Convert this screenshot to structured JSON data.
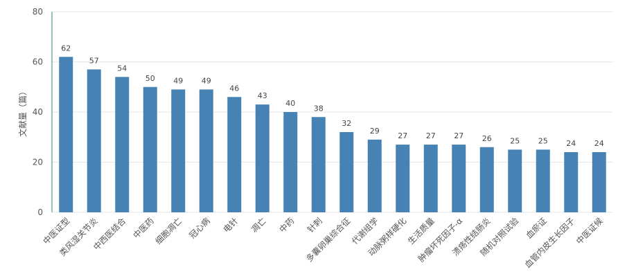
{
  "chart_data": {
    "type": "bar",
    "ylabel": "文献量（篇）",
    "ylim": [
      0,
      80
    ],
    "yticks": [
      0,
      20,
      40,
      60,
      80
    ],
    "grid": true,
    "categories": [
      "中医证型",
      "类风湿关节炎",
      "中西医结合",
      "中医药",
      "细胞凋亡",
      "冠心病",
      "电针",
      "凋亡",
      "中药",
      "针刺",
      "多囊卵巢综合征",
      "代谢组学",
      "动脉粥样硬化",
      "生活质量",
      "肿瘤坏死因子-α",
      "溃疡性结肠炎",
      "随机对照试验",
      "血瘀证",
      "血管内皮生长因子",
      "中医证候"
    ],
    "values": [
      62,
      57,
      54,
      50,
      49,
      49,
      46,
      43,
      40,
      38,
      32,
      29,
      27,
      27,
      27,
      26,
      25,
      25,
      24,
      24
    ],
    "colors": {
      "bar": "#4682b4",
      "axis": "#2e8b57",
      "grid": "#e6e6e6"
    }
  }
}
